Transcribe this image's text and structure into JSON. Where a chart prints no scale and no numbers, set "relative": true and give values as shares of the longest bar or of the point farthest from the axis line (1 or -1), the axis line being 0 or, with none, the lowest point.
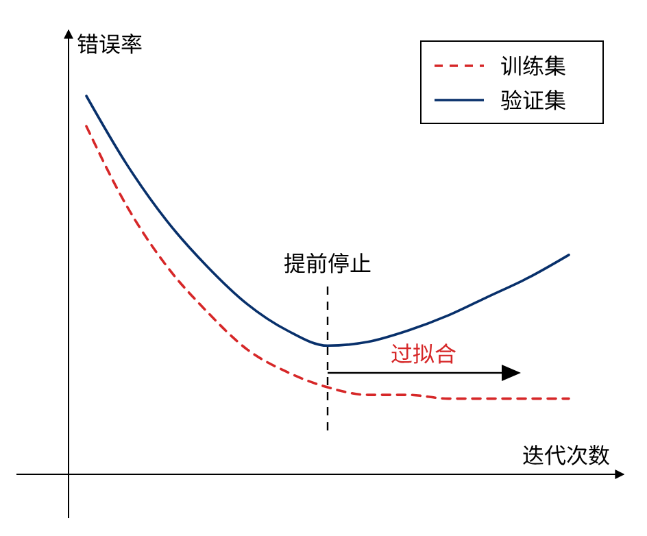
{
  "chart_data": {
    "type": "line",
    "relative": true,
    "xlabel": "迭代次数",
    "ylabel": "错误率",
    "legend": "top right",
    "categories": [
      null,
      null,
      null,
      null,
      null,
      null,
      null,
      null,
      null,
      null,
      null,
      null,
      null
    ],
    "series": [
      {
        "name": "训练集",
        "color": "#d62728",
        "line_style": "dashed",
        "values": [
          0.92,
          0.71,
          0.55,
          0.43,
          0.33,
          0.27,
          0.23,
          0.21,
          0.21,
          0.2,
          0.2,
          0.2,
          0.2
        ]
      },
      {
        "name": "验证集",
        "color": "#08306b",
        "line_style": "solid",
        "values": [
          1,
          0.82,
          0.67,
          0.55,
          0.45,
          0.38,
          0.34,
          0.35,
          0.38,
          0.42,
          0.47,
          0.52,
          0.58
        ]
      }
    ],
    "annotations": [
      "提前停止",
      "过拟合"
    ]
  }
}
